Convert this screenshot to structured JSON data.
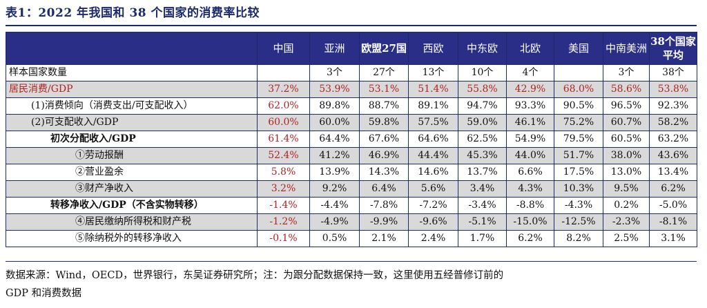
{
  "title": "表1：2022 年我国和 38 个国家的消费率比较",
  "columns": [
    "",
    "中国",
    "亚洲",
    "欧盟27国",
    "西欧",
    "中东欧",
    "北欧",
    "美国",
    "中南美洲",
    "38个国家平均"
  ],
  "rows": [
    {
      "label": "样本国家数量",
      "indent": 0,
      "gray": false,
      "label_red": false,
      "bold": false,
      "values": [
        "",
        "3个",
        "27个",
        "13个",
        "10个",
        "4个",
        "",
        "3个",
        "38个"
      ],
      "china_red": false
    },
    {
      "label": "居民消费/GDP",
      "indent": 0,
      "gray": true,
      "label_red": true,
      "bold": false,
      "values": [
        "37.2%",
        "53.9%",
        "53.1%",
        "51.4%",
        "55.8%",
        "42.9%",
        "68.0%",
        "58.6%",
        "53.8%"
      ],
      "all_red": true
    },
    {
      "label": "(1)消费倾向（消费支出/可支配收入）",
      "indent": 1,
      "gray": false,
      "label_red": false,
      "bold": false,
      "values": [
        "62.0%",
        "89.8%",
        "88.7%",
        "89.1%",
        "94.7%",
        "93.3%",
        "90.5%",
        "96.5%",
        "92.3%"
      ],
      "china_red": true
    },
    {
      "label": "(2)可支配收入/GDP",
      "indent": 1,
      "gray": true,
      "label_red": false,
      "bold": false,
      "values": [
        "60.0%",
        "60.0%",
        "59.8%",
        "57.5%",
        "59.0%",
        "46.1%",
        "75.2%",
        "60.7%",
        "58.2%"
      ],
      "china_red": true
    },
    {
      "label": "初次分配收入/GDP",
      "indent": 2,
      "gray": false,
      "label_red": false,
      "bold": true,
      "values": [
        "61.4%",
        "64.4%",
        "67.6%",
        "64.6%",
        "62.5%",
        "54.9%",
        "79.5%",
        "60.5%",
        "63.2%"
      ],
      "china_red": true
    },
    {
      "label": "①劳动报酬",
      "indent": 3,
      "gray": true,
      "label_red": false,
      "bold": false,
      "values": [
        "52.4%",
        "41.2%",
        "46.9%",
        "44.4%",
        "45.3%",
        "44.0%",
        "51.7%",
        "38.0%",
        "43.6%"
      ],
      "china_red": true
    },
    {
      "label": "②营业盈余",
      "indent": 3,
      "gray": false,
      "label_red": false,
      "bold": false,
      "values": [
        "5.8%",
        "13.9%",
        "14.3%",
        "14.6%",
        "13.7%",
        "6.6%",
        "17.5%",
        "13.0%",
        "13.4%"
      ],
      "china_red": true
    },
    {
      "label": "③财产净收入",
      "indent": 3,
      "gray": true,
      "label_red": false,
      "bold": false,
      "values": [
        "3.2%",
        "9.2%",
        "6.4%",
        "5.6%",
        "3.4%",
        "4.3%",
        "10.3%",
        "9.5%",
        "6.2%"
      ],
      "china_red": true
    },
    {
      "label": "转移净收入/GDP（不含实物转移）",
      "indent": 2,
      "gray": false,
      "label_red": false,
      "bold": true,
      "values": [
        "-1.4%",
        "-4.4%",
        "-7.8%",
        "-7.2%",
        "-3.4%",
        "-8.8%",
        "-4.3%",
        "0.2%",
        "-5.0%"
      ],
      "china_red": true
    },
    {
      "label": "④居民缴纳所得税和财产税",
      "indent": 3,
      "gray": true,
      "label_red": false,
      "bold": false,
      "values": [
        "-1.2%",
        "-4.9%",
        "-9.9%",
        "-9.6%",
        "-5.1%",
        "-15.0%",
        "-12.5%",
        "-2.3%",
        "-8.1%"
      ],
      "china_red": true
    },
    {
      "label": "⑤除纳税外的转移净收入",
      "indent": 3,
      "gray": false,
      "label_red": false,
      "bold": false,
      "values": [
        "-0.1%",
        "0.5%",
        "2.1%",
        "2.4%",
        "1.7%",
        "6.2%",
        "8.2%",
        "2.5%",
        "3.1%"
      ],
      "china_red": true
    }
  ],
  "source_line1": "数据来源：Wind，OECD，世界银行，东吴证券研究所；注：为跟分配数据保持一致，这里使用五经普修订前的",
  "source_line2": "GDP 和消费数据",
  "colors": {
    "header_bg": "#2b2e86",
    "accent_red": "#b22222",
    "title": "#1b2a6b",
    "gray_row": "#d9d9d9"
  }
}
